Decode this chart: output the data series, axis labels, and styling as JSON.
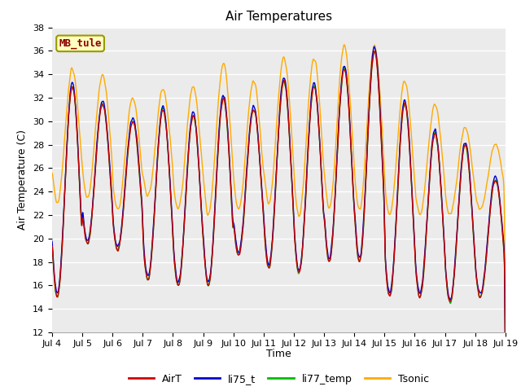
{
  "title": "Air Temperatures",
  "xlabel": "Time",
  "ylabel": "Air Temperature (C)",
  "ylim": [
    12,
    38
  ],
  "site_label": "MB_tule",
  "x_tick_labels": [
    "Jul 4",
    "Jul 5",
    "Jul 6",
    "Jul 7",
    "Jul 8",
    "Jul 9",
    "Jul 10",
    "Jul 11",
    "Jul 12",
    "Jul 13",
    "Jul 14",
    "Jul 15",
    "Jul 16",
    "Jul 17",
    "Jul 18",
    "Jul 19"
  ],
  "colors": {
    "AirT": "#cc0000",
    "li75_t": "#0000cc",
    "li77_temp": "#00bb00",
    "Tsonic": "#ffaa00"
  },
  "bg_color": "#ebebeb",
  "n_days": 15,
  "points_per_day": 96,
  "day_peaks_air": [
    33.0,
    31.5,
    30.0,
    31.0,
    30.5,
    32.0,
    31.0,
    33.5,
    33.0,
    34.5,
    36.0,
    31.5,
    29.0,
    28.0,
    25.0
  ],
  "day_troughs_air": [
    15.0,
    19.5,
    19.0,
    16.5,
    16.0,
    16.0,
    18.5,
    17.5,
    17.0,
    18.0,
    18.0,
    15.0,
    15.0,
    14.5,
    15.0
  ],
  "tsonic_extra_peak": [
    1.5,
    2.5,
    2.0,
    1.8,
    2.5,
    3.0,
    2.5,
    2.0,
    2.5,
    2.0,
    0.5,
    2.0,
    2.5,
    1.5,
    3.0
  ],
  "tsonic_extra_trough": [
    8.0,
    4.0,
    3.5,
    7.0,
    6.5,
    6.0,
    4.0,
    5.5,
    5.0,
    4.5,
    4.5,
    7.0,
    7.0,
    7.5,
    7.5
  ]
}
